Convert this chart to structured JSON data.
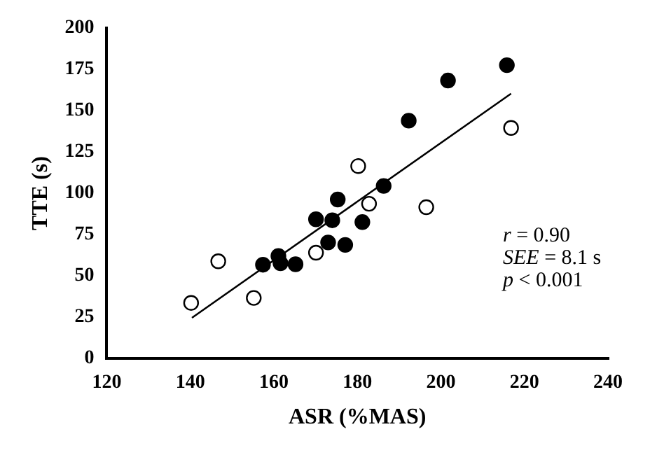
{
  "chart_data": {
    "type": "scatter",
    "xlabel": "ASR (%MAS)",
    "ylabel": "TTE (s)",
    "xlim": [
      120,
      240
    ],
    "xticks": [
      120,
      140,
      160,
      180,
      200,
      220,
      240
    ],
    "ylim": [
      0,
      200
    ],
    "yticks": [
      0,
      25,
      50,
      75,
      100,
      125,
      150,
      175,
      200
    ],
    "grid": false,
    "legend": false,
    "marker": "circle",
    "series": [
      {
        "color": "#000000",
        "x": [
          157.4,
          161.1,
          161.6,
          165.2,
          170.1,
          173,
          174,
          175.3,
          177.1,
          181.2,
          186.3,
          192.3,
          201.7,
          215.8
        ],
        "values": [
          56.7,
          62,
          57.6,
          57,
          84.2,
          70.2,
          83.6,
          96.2,
          68.7,
          82.5,
          104.4,
          143.9,
          168.2,
          177.5
        ]
      },
      {
        "color": "#ffffff",
        "x": [
          140.2,
          146.7,
          155.2,
          170.1,
          180.2,
          182.8,
          196.5,
          216.8
        ],
        "values": [
          33.6,
          58.8,
          36.6,
          64,
          116.4,
          93.6,
          91.5,
          139.5
        ]
      },
      {
        "type": "line",
        "color": "#000000",
        "marker": "none",
        "x": [
          140.4,
          216.8
        ],
        "values": [
          24.6,
          160.3
        ]
      }
    ],
    "annotations": [
      "r = 0.90",
      "SEE = 8.1 s",
      "p < 0.001"
    ]
  }
}
